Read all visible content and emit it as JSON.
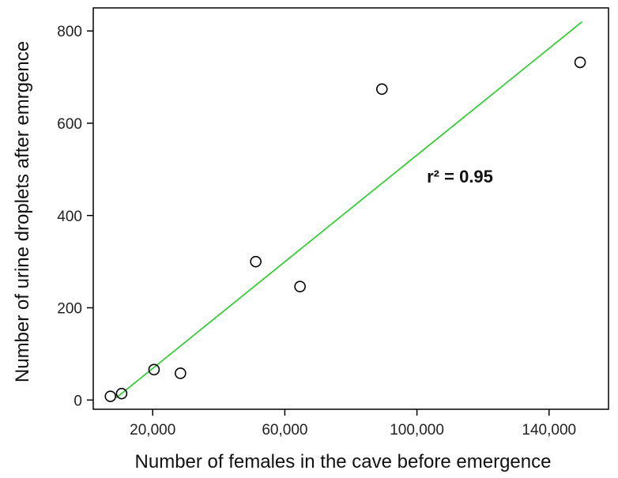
{
  "chart_data": {
    "type": "scatter",
    "xlabel": "Number of females in the cave before emergence",
    "ylabel": "Number of urine droplets after emrgence",
    "xlim": [
      2000,
      158000
    ],
    "ylim": [
      -20,
      850
    ],
    "x_ticks": [
      20000,
      60000,
      100000,
      140000
    ],
    "x_tick_labels": [
      "20,000",
      "60,000",
      "100,000",
      "140,000"
    ],
    "y_ticks": [
      0,
      200,
      400,
      600,
      800
    ],
    "y_tick_labels": [
      "0",
      "200",
      "400",
      "600",
      "800"
    ],
    "grid": false,
    "points": [
      {
        "x": 7200,
        "y": 8
      },
      {
        "x": 10600,
        "y": 14
      },
      {
        "x": 20400,
        "y": 66
      },
      {
        "x": 28400,
        "y": 58
      },
      {
        "x": 51200,
        "y": 300
      },
      {
        "x": 64600,
        "y": 246
      },
      {
        "x": 89400,
        "y": 674
      },
      {
        "x": 149400,
        "y": 732
      }
    ],
    "fit_line": {
      "x": [
        9000,
        150000
      ],
      "y": [
        5,
        820
      ],
      "color": "#22cc22"
    },
    "annotation": {
      "text": "r² = 0.95",
      "x": 103000,
      "y": 485
    },
    "marker_color": "#000000"
  }
}
